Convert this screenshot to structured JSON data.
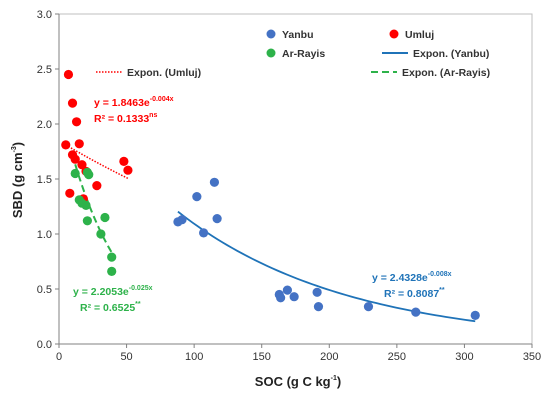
{
  "chart_data": {
    "type": "scatter",
    "xlabel": {
      "main": "SOC (g C kg",
      "sup": "-1",
      "close": ")"
    },
    "ylabel": {
      "main": "SBD (g cm",
      "sup": "-3",
      "close": ")"
    },
    "xlim": [
      0,
      350
    ],
    "ylim": [
      0,
      3.0
    ],
    "x_ticks": [
      "0",
      "50",
      "100",
      "150",
      "200",
      "250",
      "300",
      "350"
    ],
    "y_ticks": [
      "0.0",
      "0.5",
      "1.0",
      "1.5",
      "2.0",
      "2.5",
      "3.0"
    ],
    "grid": false,
    "legend_position": "top-right",
    "colors": {
      "Yanbu": "#4472C4",
      "Umluj": "#FF0000",
      "Ar-Rayis": "#2DB24A",
      "yanbu_eq": "#1F73B8"
    },
    "series": [
      {
        "name": "Yanbu",
        "points": [
          [
            88,
            1.11
          ],
          [
            91,
            1.13
          ],
          [
            102,
            1.34
          ],
          [
            107,
            1.01
          ],
          [
            115,
            1.47
          ],
          [
            117,
            1.14
          ],
          [
            163,
            0.45
          ],
          [
            164,
            0.42
          ],
          [
            169,
            0.49
          ],
          [
            174,
            0.43
          ],
          [
            191,
            0.47
          ],
          [
            192,
            0.34
          ],
          [
            229,
            0.34
          ],
          [
            264,
            0.29
          ],
          [
            308,
            0.26
          ]
        ]
      },
      {
        "name": "Umluj",
        "points": [
          [
            7,
            2.45
          ],
          [
            5,
            1.81
          ],
          [
            10,
            2.19
          ],
          [
            13,
            2.02
          ],
          [
            10,
            1.72
          ],
          [
            12,
            1.68
          ],
          [
            15,
            1.82
          ],
          [
            17,
            1.63
          ],
          [
            20,
            1.57
          ],
          [
            48,
            1.66
          ],
          [
            51,
            1.58
          ],
          [
            28,
            1.44
          ],
          [
            8,
            1.37
          ],
          [
            18,
            1.32
          ]
        ]
      },
      {
        "name": "Ar-Rayis",
        "points": [
          [
            12,
            1.55
          ],
          [
            21,
            1.56
          ],
          [
            22,
            1.54
          ],
          [
            15,
            1.31
          ],
          [
            17,
            1.28
          ],
          [
            20,
            1.26
          ],
          [
            34,
            1.15
          ],
          [
            21,
            1.12
          ],
          [
            31,
            1.0
          ],
          [
            39,
            0.79
          ],
          [
            39,
            0.66
          ]
        ]
      }
    ],
    "trendlines": [
      {
        "name": "Expon. (Yanbu)",
        "a": 2.4328,
        "b": -0.008,
        "x_range": [
          88,
          308
        ],
        "style": "solid"
      },
      {
        "name": "Expon. (Umluj)",
        "a": 1.8463,
        "b": -0.004,
        "x_range": [
          5,
          51
        ],
        "style": "dotted"
      },
      {
        "name": "Expon. (Ar-Rayis)",
        "a": 2.2053,
        "b": -0.025,
        "x_range": [
          12,
          39
        ],
        "style": "dashed"
      }
    ],
    "legend": [
      "Yanbu",
      "Umluj",
      "Ar-Rayis",
      "Expon. (Yanbu)",
      "Expon. (Umluj)",
      "Expon. (Ar-Rayis)"
    ],
    "annotations": [
      {
        "series": "Umluj",
        "eq_base": "y = 1.8463e",
        "eq_exp": "-0.004x",
        "r2_base": "R² = 0.1333",
        "r2_sup": "ns"
      },
      {
        "series": "Ar-Rayis",
        "eq_base": "y = 2.2053e",
        "eq_exp": "-0.025x",
        "r2_base": "R² = 0.6525",
        "r2_sup": "**"
      },
      {
        "series": "Yanbu",
        "eq_base": "y = 2.4328e",
        "eq_exp": "-0.008x",
        "r2_base": "R² = 0.8087",
        "r2_sup": "**"
      }
    ]
  }
}
